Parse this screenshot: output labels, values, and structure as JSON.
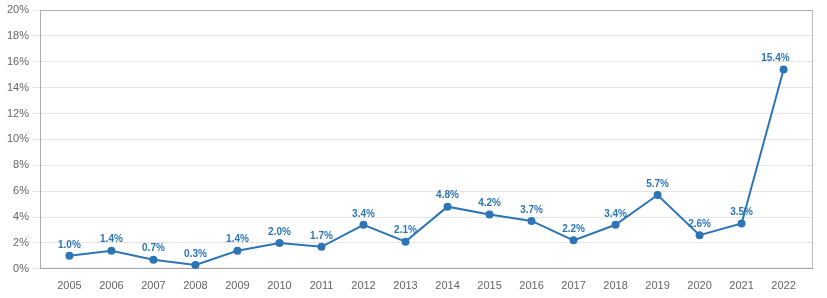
{
  "chart_data": {
    "type": "line",
    "x": [
      2005,
      2006,
      2007,
      2008,
      2009,
      2010,
      2011,
      2012,
      2013,
      2014,
      2015,
      2016,
      2017,
      2018,
      2019,
      2020,
      2021,
      2022
    ],
    "values": [
      1.0,
      1.4,
      0.7,
      0.3,
      1.4,
      2.0,
      1.7,
      3.4,
      2.1,
      4.8,
      4.2,
      3.7,
      2.2,
      3.4,
      5.7,
      2.6,
      3.5,
      15.4
    ],
    "value_labels": [
      "1.0%",
      "1.4%",
      "0.7%",
      "0.3%",
      "1.4%",
      "2.0%",
      "1.7%",
      "3.4%",
      "2.1%",
      "4.8%",
      "4.2%",
      "3.7%",
      "2.2%",
      "3.4%",
      "5.7%",
      "2.6%",
      "3.5%",
      "15.4%"
    ],
    "data_labels": true,
    "color": "#2E75B6",
    "marker": "circle",
    "xlim": [
      2004.3,
      2022.7
    ],
    "xticks": [
      2005,
      2006,
      2007,
      2008,
      2009,
      2010,
      2011,
      2012,
      2013,
      2014,
      2015,
      2016,
      2017,
      2018,
      2019,
      2020,
      2021,
      2022
    ],
    "ylim": [
      0,
      20
    ],
    "yticks": [
      {
        "value": 0,
        "label": "0%"
      },
      {
        "value": 2,
        "label": "2%"
      },
      {
        "value": 4,
        "label": "4%"
      },
      {
        "value": 6,
        "label": "6%"
      },
      {
        "value": 8,
        "label": "8%"
      },
      {
        "value": 10,
        "label": "10%"
      },
      {
        "value": 12,
        "label": "12%"
      },
      {
        "value": 14,
        "label": "14%"
      },
      {
        "value": 16,
        "label": "16%"
      },
      {
        "value": 18,
        "label": "18%"
      },
      {
        "value": 20,
        "label": "20%"
      }
    ],
    "grid": "y"
  }
}
